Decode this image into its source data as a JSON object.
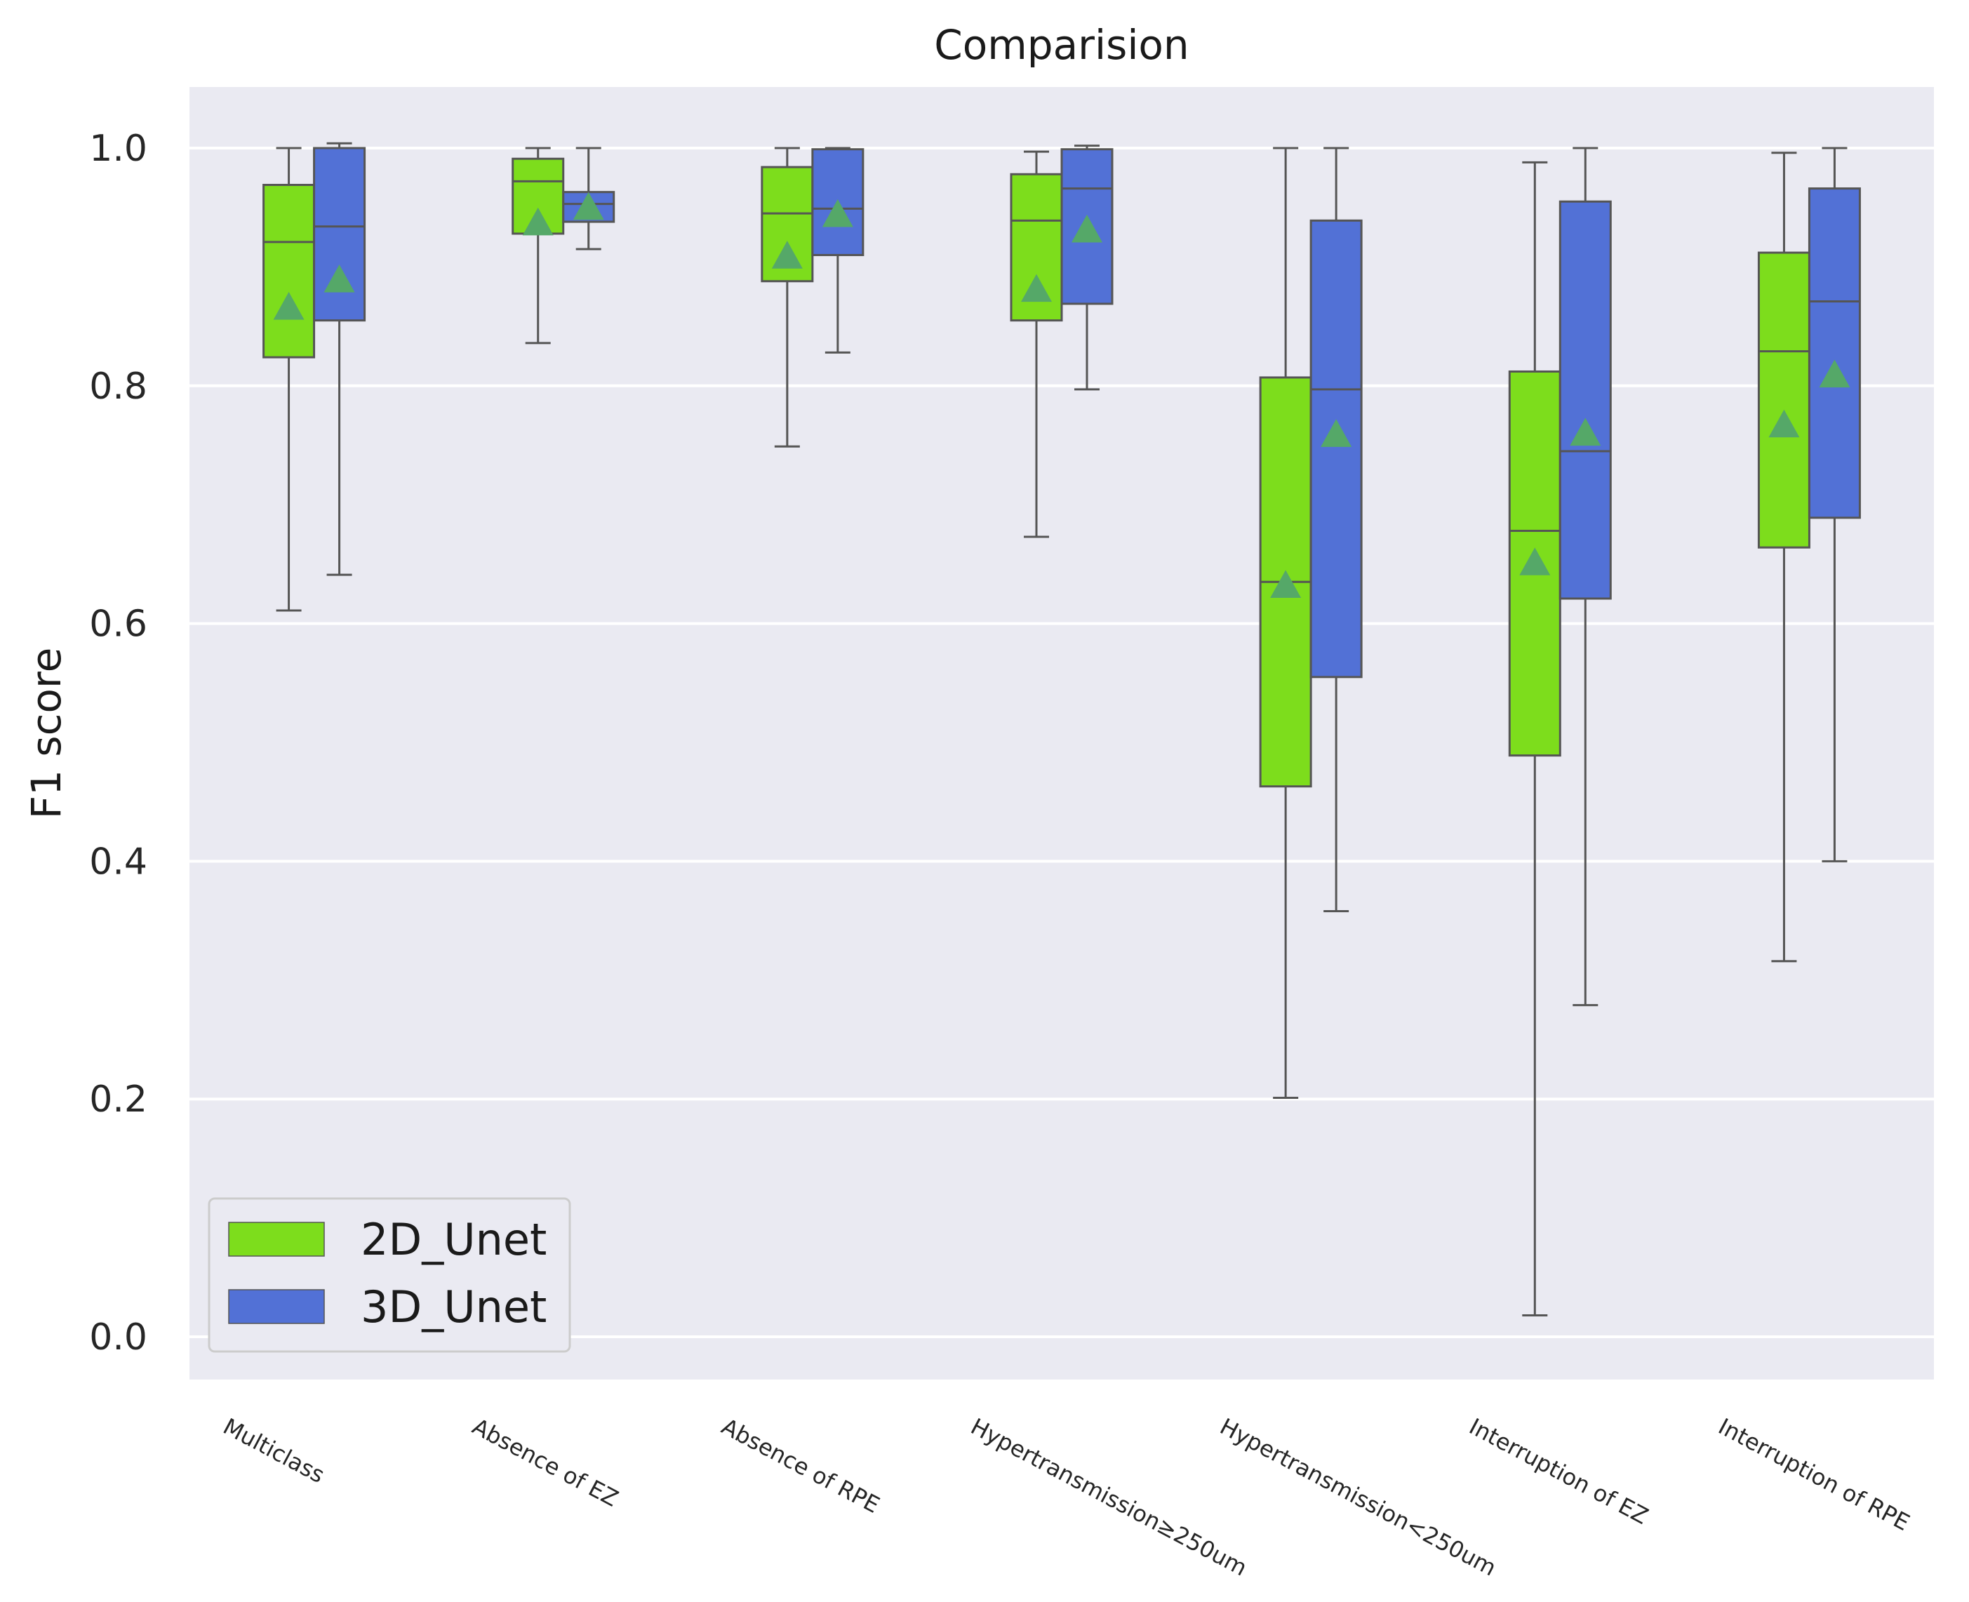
{
  "chart_data": {
    "type": "box",
    "title": "Comparision",
    "xlabel": "",
    "ylabel": "F1 score",
    "ylim": [
      -0.03,
      1.05
    ],
    "yticks": [
      0.0,
      0.2,
      0.4,
      0.6,
      0.8,
      1.0
    ],
    "ytick_labels": [
      "0.0",
      "0.2",
      "0.4",
      "0.6",
      "0.8",
      "1.0"
    ],
    "grid": true,
    "legend_position": "bottom-left",
    "categories": [
      "Multiclass",
      "Absence of EZ",
      "Absence of RPE",
      "Hypertransmission≥250um",
      "Hypertransmission<250um",
      "Interruption of EZ",
      "Interruption of RPE"
    ],
    "series": [
      {
        "name": "2D_Unet",
        "color": "#7ddd1c",
        "boxes": [
          {
            "whislo": 0.611,
            "q1": 0.824,
            "med": 0.921,
            "q3": 0.969,
            "whishi": 1.0,
            "mean": 0.866
          },
          {
            "whislo": 0.836,
            "q1": 0.928,
            "med": 0.972,
            "q3": 0.991,
            "whishi": 1.0,
            "mean": 0.937
          },
          {
            "whislo": 0.749,
            "q1": 0.888,
            "med": 0.945,
            "q3": 0.984,
            "whishi": 1.0,
            "mean": 0.909
          },
          {
            "whislo": 0.673,
            "q1": 0.855,
            "med": 0.939,
            "q3": 0.978,
            "whishi": 0.997,
            "mean": 0.881
          },
          {
            "whislo": 0.201,
            "q1": 0.463,
            "med": 0.635,
            "q3": 0.807,
            "whishi": 1.0,
            "mean": 0.632
          },
          {
            "whislo": 0.018,
            "q1": 0.489,
            "med": 0.678,
            "q3": 0.812,
            "whishi": 0.988,
            "mean": 0.651
          },
          {
            "whislo": 0.316,
            "q1": 0.664,
            "med": 0.829,
            "q3": 0.912,
            "whishi": 0.996,
            "mean": 0.767
          }
        ]
      },
      {
        "name": "3D_Unet",
        "color": "#5271d6",
        "boxes": [
          {
            "whislo": 0.641,
            "q1": 0.855,
            "med": 0.934,
            "q3": 1.0,
            "whishi": 1.004,
            "mean": 0.889
          },
          {
            "whislo": 0.915,
            "q1": 0.938,
            "med": 0.953,
            "q3": 0.963,
            "whishi": 1.0,
            "mean": 0.95
          },
          {
            "whislo": 0.828,
            "q1": 0.91,
            "med": 0.949,
            "q3": 0.999,
            "whishi": 1.0,
            "mean": 0.944
          },
          {
            "whislo": 0.797,
            "q1": 0.869,
            "med": 0.966,
            "q3": 0.999,
            "whishi": 1.002,
            "mean": 0.931
          },
          {
            "whislo": 0.358,
            "q1": 0.555,
            "med": 0.797,
            "q3": 0.939,
            "whishi": 1.0,
            "mean": 0.759
          },
          {
            "whislo": 0.279,
            "q1": 0.621,
            "med": 0.745,
            "q3": 0.955,
            "whishi": 1.0,
            "mean": 0.76
          },
          {
            "whislo": 0.4,
            "q1": 0.689,
            "med": 0.871,
            "q3": 0.966,
            "whishi": 1.0,
            "mean": 0.809
          }
        ]
      }
    ],
    "mean_marker_color": "#55a868"
  }
}
